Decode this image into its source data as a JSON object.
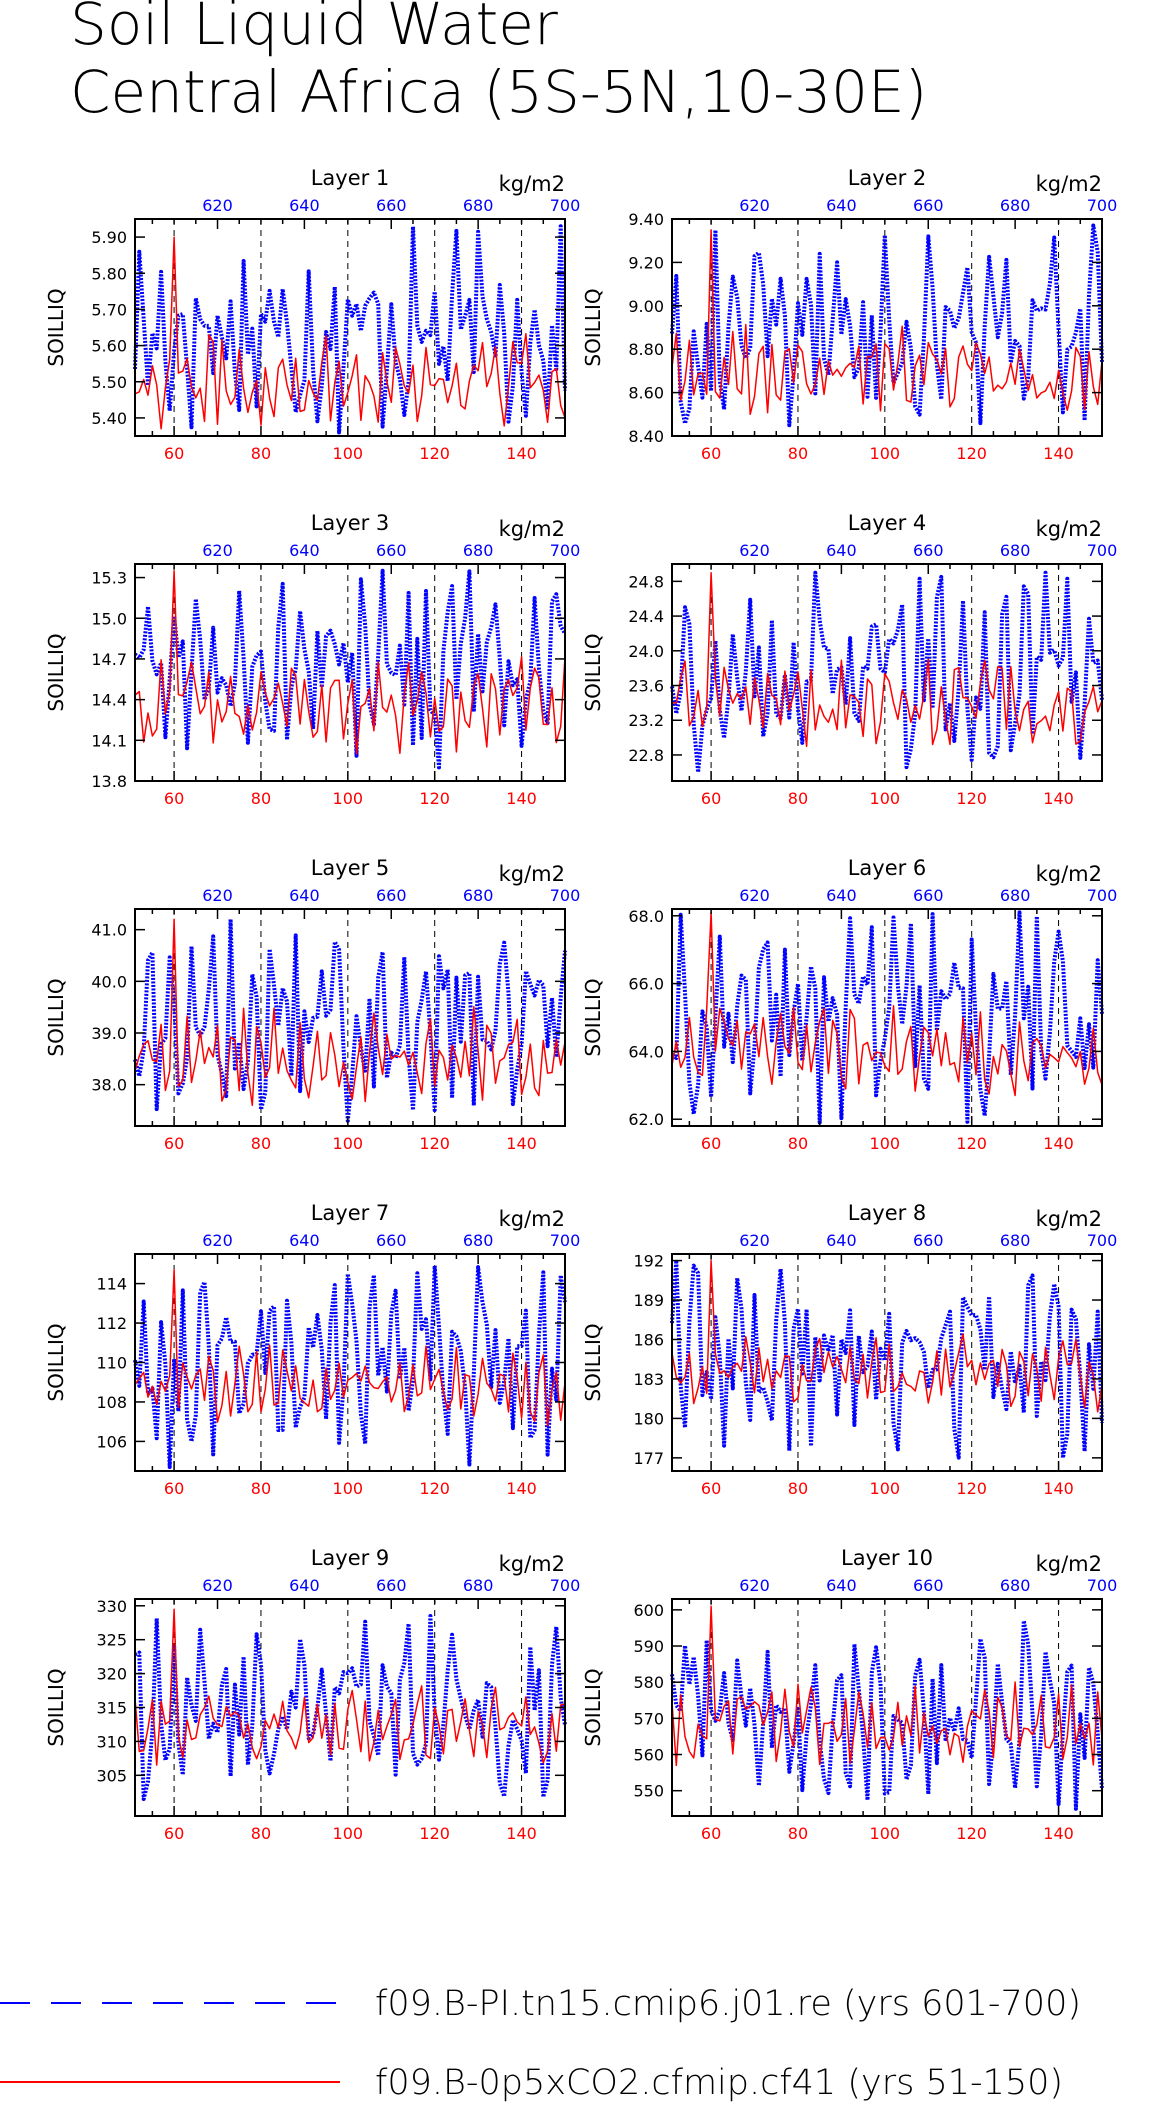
{
  "figure": {
    "title_line1": "Soil Liquid Water",
    "title_line2": "Central Africa (5S-5N,10-30E)"
  },
  "legend": [
    {
      "label": "f09.B-PI.tn15.cmip6.j01.re (yrs 601-700)",
      "color": "#0000ff",
      "style": "dashed"
    },
    {
      "label": "f09.B-0p5xCO2.cfmip.cf41 (yrs 51-150)",
      "color": "#ff0000",
      "style": "solid"
    }
  ],
  "chart_data": [
    {
      "type": "line",
      "title": "Layer 1",
      "ylabel": "SOILLIQ",
      "units": "kg/m2",
      "ylim": [
        5.35,
        5.95
      ],
      "yticks": [
        5.4,
        5.5,
        5.6,
        5.7,
        5.8,
        5.9
      ],
      "ytick_labels": [
        "5.40",
        "5.50",
        "5.60",
        "5.70",
        "5.80",
        "5.90"
      ],
      "xlim_bottom": [
        51,
        150
      ],
      "xticks_bottom": [
        60,
        80,
        100,
        120,
        140
      ],
      "xlim_top": [
        601,
        700
      ],
      "xticks_top": [
        620,
        640,
        660,
        680,
        700
      ],
      "series": [
        {
          "name": "f09.B-PI.tn15.cmip6.j01.re (yrs 601-700)",
          "axis": "top",
          "color": "#0000ff",
          "min": 5.36,
          "max": 5.93,
          "mean": 5.63
        },
        {
          "name": "f09.B-0p5xCO2.cfmip.cf41 (yrs 51-150)",
          "axis": "bottom",
          "color": "#ff0000",
          "min": 5.37,
          "max": 5.9,
          "mean": 5.58
        }
      ]
    },
    {
      "type": "line",
      "title": "Layer 2",
      "ylabel": "SOILLIQ",
      "units": "kg/m2",
      "ylim": [
        8.4,
        9.4
      ],
      "yticks": [
        8.4,
        8.6,
        8.8,
        9.0,
        9.2,
        9.4
      ],
      "ytick_labels": [
        "8.40",
        "8.60",
        "8.80",
        "9.00",
        "9.20",
        "9.40"
      ],
      "xlim_bottom": [
        51,
        150
      ],
      "xticks_bottom": [
        60,
        80,
        100,
        120,
        140
      ],
      "xlim_top": [
        601,
        700
      ],
      "xticks_top": [
        620,
        640,
        660,
        680,
        700
      ],
      "series": [
        {
          "name": "f09.B-PI.tn15.cmip6.j01.re (yrs 601-700)",
          "axis": "top",
          "color": "#0000ff",
          "min": 8.45,
          "max": 9.37,
          "mean": 8.92
        },
        {
          "name": "f09.B-0p5xCO2.cfmip.cf41 (yrs 51-150)",
          "axis": "bottom",
          "color": "#ff0000",
          "min": 8.5,
          "max": 9.35,
          "mean": 8.82
        }
      ]
    },
    {
      "type": "line",
      "title": "Layer 3",
      "ylabel": "SOILLIQ",
      "units": "kg/m2",
      "ylim": [
        13.8,
        15.4
      ],
      "yticks": [
        13.8,
        14.1,
        14.4,
        14.7,
        15.0,
        15.3
      ],
      "ytick_labels": [
        "13.8",
        "14.1",
        "14.4",
        "14.7",
        "15.0",
        "15.3"
      ],
      "xlim_bottom": [
        51,
        150
      ],
      "xticks_bottom": [
        60,
        80,
        100,
        120,
        140
      ],
      "xlim_top": [
        601,
        700
      ],
      "xticks_top": [
        620,
        640,
        660,
        680,
        700
      ],
      "series": [
        {
          "name": "f09.B-PI.tn15.cmip6.j01.re (yrs 601-700)",
          "axis": "top",
          "color": "#0000ff",
          "min": 13.9,
          "max": 15.35,
          "mean": 14.6
        },
        {
          "name": "f09.B-0p5xCO2.cfmip.cf41 (yrs 51-150)",
          "axis": "bottom",
          "color": "#ff0000",
          "min": 14.0,
          "max": 15.35,
          "mean": 14.45
        }
      ]
    },
    {
      "type": "line",
      "title": "Layer 4",
      "ylabel": "SOILLIQ",
      "units": "kg/m2",
      "ylim": [
        22.5,
        25.0
      ],
      "yticks": [
        22.8,
        23.2,
        23.6,
        24.0,
        24.4,
        24.8
      ],
      "ytick_labels": [
        "22.8",
        "23.2",
        "23.6",
        "24.0",
        "24.4",
        "24.8"
      ],
      "xlim_bottom": [
        51,
        150
      ],
      "xticks_bottom": [
        60,
        80,
        100,
        120,
        140
      ],
      "xlim_top": [
        601,
        700
      ],
      "xticks_top": [
        620,
        640,
        660,
        680,
        700
      ],
      "series": [
        {
          "name": "f09.B-PI.tn15.cmip6.j01.re (yrs 601-700)",
          "axis": "top",
          "color": "#0000ff",
          "min": 22.6,
          "max": 24.9,
          "mean": 23.8
        },
        {
          "name": "f09.B-0p5xCO2.cfmip.cf41 (yrs 51-150)",
          "axis": "bottom",
          "color": "#ff0000",
          "min": 22.9,
          "max": 24.9,
          "mean": 23.6
        }
      ]
    },
    {
      "type": "line",
      "title": "Layer 5",
      "ylabel": "SOILLIQ",
      "units": "kg/m2",
      "ylim": [
        37.2,
        41.4
      ],
      "yticks": [
        38.0,
        39.0,
        40.0,
        41.0
      ],
      "ytick_labels": [
        "38.0",
        "39.0",
        "40.0",
        "41.0"
      ],
      "xlim_bottom": [
        51,
        150
      ],
      "xticks_bottom": [
        60,
        80,
        100,
        120,
        140
      ],
      "xlim_top": [
        601,
        700
      ],
      "xticks_top": [
        620,
        640,
        660,
        680,
        700
      ],
      "series": [
        {
          "name": "f09.B-PI.tn15.cmip6.j01.re (yrs 601-700)",
          "axis": "top",
          "color": "#0000ff",
          "min": 37.3,
          "max": 41.2,
          "mean": 39.3
        },
        {
          "name": "f09.B-0p5xCO2.cfmip.cf41 (yrs 51-150)",
          "axis": "bottom",
          "color": "#ff0000",
          "min": 37.6,
          "max": 41.2,
          "mean": 38.9
        }
      ]
    },
    {
      "type": "line",
      "title": "Layer 6",
      "ylabel": "SOILLIQ",
      "units": "kg/m2",
      "ylim": [
        61.8,
        68.2
      ],
      "yticks": [
        62.0,
        64.0,
        66.0,
        68.0
      ],
      "ytick_labels": [
        "62.0",
        "64.0",
        "66.0",
        "68.0"
      ],
      "xlim_bottom": [
        51,
        150
      ],
      "xticks_bottom": [
        60,
        80,
        100,
        120,
        140
      ],
      "xlim_top": [
        601,
        700
      ],
      "xticks_top": [
        620,
        640,
        660,
        680,
        700
      ],
      "series": [
        {
          "name": "f09.B-PI.tn15.cmip6.j01.re (yrs 601-700)",
          "axis": "top",
          "color": "#0000ff",
          "min": 61.9,
          "max": 68.1,
          "mean": 65.0
        },
        {
          "name": "f09.B-0p5xCO2.cfmip.cf41 (yrs 51-150)",
          "axis": "bottom",
          "color": "#ff0000",
          "min": 62.7,
          "max": 68.1,
          "mean": 64.6
        }
      ]
    },
    {
      "type": "line",
      "title": "Layer 7",
      "ylabel": "SOILLIQ",
      "units": "kg/m2",
      "ylim": [
        104.5,
        115.5
      ],
      "yticks": [
        106,
        108,
        110,
        112,
        114
      ],
      "ytick_labels": [
        "106",
        "108",
        "110",
        "112",
        "114"
      ],
      "xlim_bottom": [
        51,
        150
      ],
      "xticks_bottom": [
        60,
        80,
        100,
        120,
        140
      ],
      "xlim_top": [
        601,
        700
      ],
      "xticks_top": [
        620,
        640,
        660,
        680,
        700
      ],
      "series": [
        {
          "name": "f09.B-PI.tn15.cmip6.j01.re (yrs 601-700)",
          "axis": "top",
          "color": "#0000ff",
          "min": 104.7,
          "max": 114.9,
          "mean": 110.0
        },
        {
          "name": "f09.B-0p5xCO2.cfmip.cf41 (yrs 51-150)",
          "axis": "bottom",
          "color": "#ff0000",
          "min": 106.8,
          "max": 114.7,
          "mean": 109.5
        }
      ]
    },
    {
      "type": "line",
      "title": "Layer 8",
      "ylabel": "SOILLIQ",
      "units": "kg/m2",
      "ylim": [
        176,
        192.5
      ],
      "yticks": [
        177,
        180,
        183,
        186,
        189,
        192
      ],
      "ytick_labels": [
        "177",
        "180",
        "183",
        "186",
        "189",
        "192"
      ],
      "xlim_bottom": [
        51,
        150
      ],
      "xticks_bottom": [
        60,
        80,
        100,
        120,
        140
      ],
      "xlim_top": [
        601,
        700
      ],
      "xticks_top": [
        620,
        640,
        660,
        680,
        700
      ],
      "series": [
        {
          "name": "f09.B-PI.tn15.cmip6.j01.re (yrs 601-700)",
          "axis": "top",
          "color": "#0000ff",
          "min": 177.0,
          "max": 192.0,
          "mean": 184.3
        },
        {
          "name": "f09.B-0p5xCO2.cfmip.cf41 (yrs 51-150)",
          "axis": "bottom",
          "color": "#ff0000",
          "min": 180.5,
          "max": 192.0,
          "mean": 183.8
        }
      ]
    },
    {
      "type": "line",
      "title": "Layer 9",
      "ylabel": "SOILLIQ",
      "units": "kg/m2",
      "ylim": [
        299,
        331
      ],
      "yticks": [
        305,
        310,
        315,
        320,
        325,
        330
      ],
      "ytick_labels": [
        "305",
        "310",
        "315",
        "320",
        "325",
        "330"
      ],
      "xlim_bottom": [
        51,
        150
      ],
      "xticks_bottom": [
        60,
        80,
        100,
        120,
        140
      ],
      "xlim_top": [
        601,
        700
      ],
      "xticks_top": [
        620,
        640,
        660,
        680,
        700
      ],
      "series": [
        {
          "name": "f09.B-PI.tn15.cmip6.j01.re (yrs 601-700)",
          "axis": "top",
          "color": "#0000ff",
          "min": 301.5,
          "max": 328.5,
          "mean": 314.5
        },
        {
          "name": "f09.B-0p5xCO2.cfmip.cf41 (yrs 51-150)",
          "axis": "bottom",
          "color": "#ff0000",
          "min": 306.5,
          "max": 329.5,
          "mean": 312.5
        }
      ]
    },
    {
      "type": "line",
      "title": "Layer 10",
      "ylabel": "SOILLIQ",
      "units": "kg/m2",
      "ylim": [
        543,
        603
      ],
      "yticks": [
        550,
        560,
        570,
        580,
        590,
        600
      ],
      "ytick_labels": [
        "550",
        "560",
        "570",
        "580",
        "590",
        "600"
      ],
      "xlim_bottom": [
        51,
        150
      ],
      "xticks_bottom": [
        60,
        80,
        100,
        120,
        140
      ],
      "xlim_top": [
        601,
        700
      ],
      "xticks_top": [
        620,
        640,
        660,
        680,
        700
      ],
      "series": [
        {
          "name": "f09.B-PI.tn15.cmip6.j01.re (yrs 601-700)",
          "axis": "top",
          "color": "#0000ff",
          "min": 545.0,
          "max": 597.0,
          "mean": 571.0
        },
        {
          "name": "f09.B-0p5xCO2.cfmip.cf41 (yrs 51-150)",
          "axis": "bottom",
          "color": "#ff0000",
          "min": 557.0,
          "max": 601.0,
          "mean": 569.0
        }
      ]
    }
  ]
}
